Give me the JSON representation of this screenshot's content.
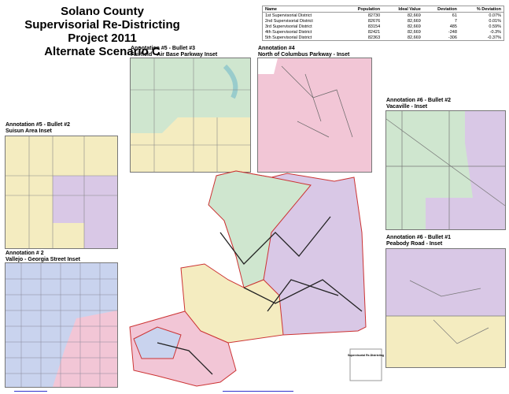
{
  "header": {
    "title": [
      "Solano County",
      "Supervisorial Re-Districting Project 2011",
      "Alternate Scenario C"
    ]
  },
  "table": {
    "columns": [
      "Name",
      "Population",
      "Ideal Value",
      "Deviation",
      "% Deviation"
    ],
    "rows": [
      [
        "1st Supervisorial District",
        "82730",
        "82,669",
        "61",
        "0.07%"
      ],
      [
        "2nd Supervisorial District",
        "82676",
        "82,669",
        "7",
        "0.01%"
      ],
      [
        "3rd Supervisorial District",
        "83154",
        "82,669",
        "485",
        "0.59%"
      ],
      [
        "4th Supervisorial District",
        "82421",
        "82,669",
        "-248",
        "-0.3%"
      ],
      [
        "5th Supervisorial District",
        "82363",
        "82,669",
        "-306",
        "-0.37%"
      ]
    ]
  },
  "insets": [
    {
      "annotation": "Annotation #5 - Bullet #3",
      "label": "Fairfield - Air Base Parkway Inset"
    },
    {
      "annotation": "Annotation #4",
      "label": "North of Columbus Parkway - Inset"
    },
    {
      "annotation": "Annotation #5 - Bullet #2",
      "label": "Suisun Area Inset"
    },
    {
      "annotation": "Annotation #6 - Bullet #2",
      "label": "Vacaville - Inset"
    },
    {
      "annotation": "Annotation # 2",
      "label": "Vallejo - Georgia Street Inset"
    },
    {
      "annotation": "Annotation #6 - Bullet #1",
      "label": "Peabody Road - Inset"
    }
  ],
  "legend": {
    "title": "Supervisorial Re-Districting"
  }
}
